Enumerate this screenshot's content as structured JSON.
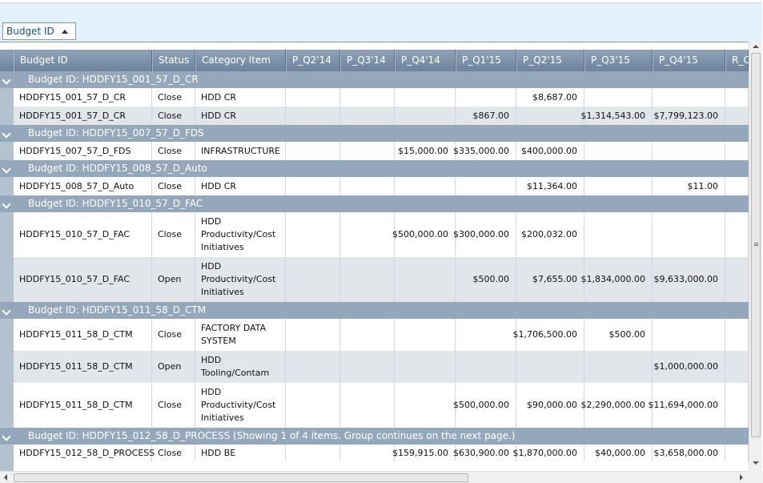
{
  "group_panel": {
    "chip_label": "Budget ID",
    "sort_icon": "sort-ascending-triangle"
  },
  "columns": [
    "Budget ID",
    "Status",
    "Category Item",
    "P_Q2'14",
    "P_Q3'14",
    "P_Q4'14",
    "P_Q1'15",
    "P_Q2'15",
    "P_Q3'15",
    "P_Q4'15",
    "R_C"
  ],
  "groups": [
    {
      "label": "Budget ID: HDDFY15_001_57_D_CR",
      "rows": [
        {
          "cells": [
            "HDDFY15_001_57_D_CR",
            "Close",
            "HDD CR",
            "",
            "",
            "",
            "",
            "$8,687.00",
            "",
            "",
            ""
          ]
        },
        {
          "cells": [
            "HDDFY15_001_57_D_CR",
            "Close",
            "HDD CR",
            "",
            "",
            "",
            "$867.00",
            "",
            "$1,314,543.00",
            "$7,799,123.00",
            ""
          ]
        }
      ]
    },
    {
      "label": "Budget ID: HDDFY15_007_57_D_FDS",
      "rows": [
        {
          "cells": [
            "HDDFY15_007_57_D_FDS",
            "Close",
            "INFRASTRUCTURE",
            "",
            "",
            "$15,000.00",
            "$335,000.00",
            "$400,000.00",
            "",
            "",
            ""
          ]
        }
      ]
    },
    {
      "label": "Budget ID: HDDFY15_008_57_D_Auto",
      "rows": [
        {
          "cells": [
            "HDDFY15_008_57_D_Auto",
            "Close",
            "HDD CR",
            "",
            "",
            "",
            "",
            "$11,364.00",
            "",
            "$11.00",
            ""
          ]
        }
      ]
    },
    {
      "label": "Budget ID: HDDFY15_010_57_D_FAC",
      "rows": [
        {
          "cells": [
            "HDDFY15_010_57_D_FAC",
            "Close",
            "HDD Productivity/Cost Initiatives",
            "",
            "",
            "$500,000.00",
            "$300,000.00",
            "$200,032.00",
            "",
            "",
            ""
          ]
        },
        {
          "cells": [
            "HDDFY15_010_57_D_FAC",
            "Open",
            "HDD Productivity/Cost Initiatives",
            "",
            "",
            "",
            "$500.00",
            "$7,655.00",
            "$1,834,000.00",
            "$9,633,000.00",
            ""
          ]
        }
      ]
    },
    {
      "label": "Budget ID: HDDFY15_011_58_D_CTM",
      "rows": [
        {
          "cells": [
            "HDDFY15_011_58_D_CTM",
            "Close",
            "FACTORY DATA SYSTEM",
            "",
            "",
            "",
            "",
            "$1,706,500.00",
            "$500.00",
            "",
            ""
          ]
        },
        {
          "cells": [
            "HDDFY15_011_58_D_CTM",
            "Open",
            "HDD Tooling/Contam",
            "",
            "",
            "",
            "",
            "",
            "",
            "$1,000,000.00",
            ""
          ]
        },
        {
          "cells": [
            "HDDFY15_011_58_D_CTM",
            "Close",
            "HDD Productivity/Cost Initiatives",
            "",
            "",
            "",
            "$500,000.00",
            "$90,000.00",
            "$2,290,000.00",
            "$11,694,000.00",
            ""
          ]
        }
      ]
    },
    {
      "label": "Budget ID: HDDFY15_012_58_D_PROCESS (Showing 1 of 4 items. Group continues on the next page.)",
      "rows": [
        {
          "cells": [
            "HDDFY15_012_58_D_PROCESS",
            "Close",
            "HDD BE",
            "",
            "",
            "$159,915.00",
            "$630,900.00",
            "$1,870,000.00",
            "$40,000.00",
            "$3,658,000.00",
            ""
          ]
        }
      ]
    }
  ]
}
